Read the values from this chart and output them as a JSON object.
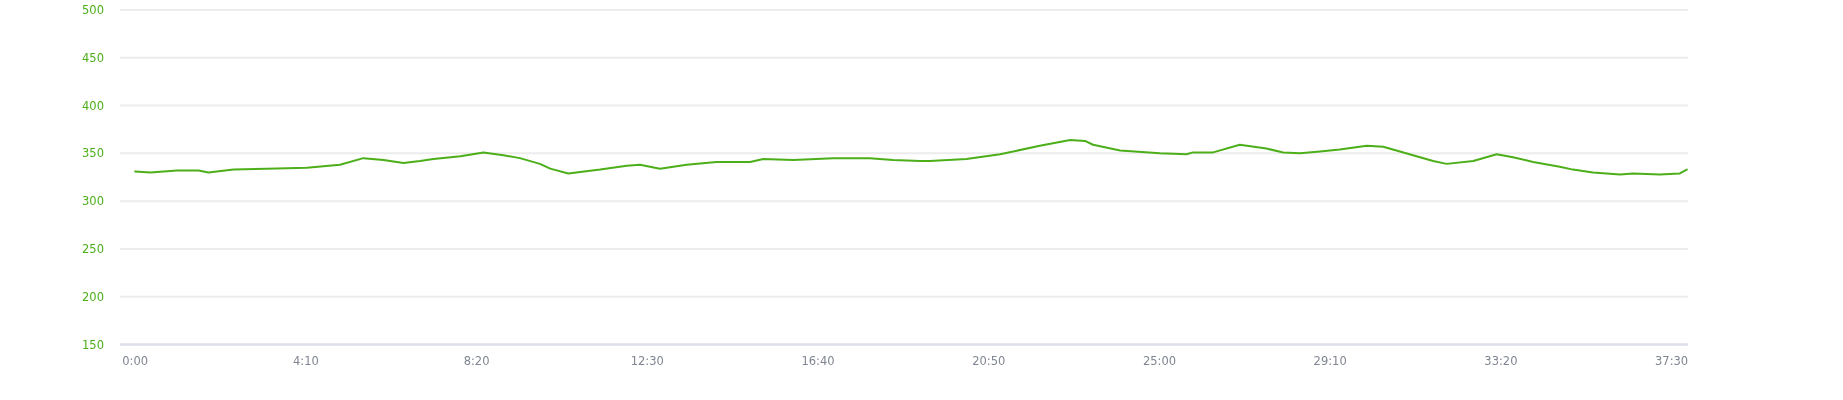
{
  "chart_data": {
    "type": "line",
    "color": "#4caf1a",
    "grid": "y",
    "marker": "none",
    "line_style": "solid",
    "x": [
      0,
      0.37,
      1.02,
      1.55,
      1.79,
      2.4,
      3.21,
      4.19,
      5.0,
      5.57,
      6.06,
      6.55,
      6.95,
      7.28,
      7.94,
      8.5,
      8.99,
      9.39,
      9.88,
      10.13,
      10.57,
      11.35,
      12.0,
      12.32,
      12.81,
      13.46,
      14.19,
      15.01,
      15.33,
      16.06,
      17.04,
      17.93,
      18.5,
      19.16,
      19.4,
      20.29,
      21.11,
      22.08,
      22.82,
      23.18,
      23.38,
      24.04,
      25.01,
      25.66,
      25.82,
      26.31,
      26.96,
      27.61,
      28.02,
      28.43,
      28.92,
      29.4,
      30.06,
      30.46,
      30.87,
      31.68,
      32.01,
      32.66,
      33.23,
      33.63,
      34.12,
      34.77,
      35.09,
      35.58,
      36.24,
      36.56,
      37.21,
      37.7,
      37.87
    ],
    "values": [
      331,
      330,
      332,
      332,
      330,
      333,
      334,
      335,
      338,
      345,
      343,
      340,
      342,
      344,
      347,
      351,
      348,
      345,
      339,
      334,
      329,
      333,
      337,
      338,
      334,
      338,
      341,
      341,
      344,
      343,
      345,
      345,
      343,
      342,
      342,
      344,
      349,
      358,
      364,
      363,
      359,
      353,
      350,
      349,
      351,
      351,
      359,
      355,
      351,
      350,
      352,
      354,
      358,
      357,
      352,
      342,
      339,
      342,
      349,
      346,
      341,
      336,
      333,
      330,
      328,
      329,
      328,
      329,
      333
    ],
    "xlim": [
      -0.37,
      37.9
    ],
    "xticks": [
      {
        "value": 0,
        "label": "0:00"
      },
      {
        "value": 4.1667,
        "label": "4:10"
      },
      {
        "value": 8.3333,
        "label": "8:20"
      },
      {
        "value": 12.5,
        "label": "12:30"
      },
      {
        "value": 16.6667,
        "label": "16:40"
      },
      {
        "value": 20.8333,
        "label": "20:50"
      },
      {
        "value": 25,
        "label": "25:00"
      },
      {
        "value": 29.1667,
        "label": "29:10"
      },
      {
        "value": 33.3333,
        "label": "33:20"
      },
      {
        "value": 37.5,
        "label": "37:30"
      }
    ],
    "ylim": [
      150,
      500
    ],
    "yticks": [
      150,
      200,
      250,
      300,
      350,
      400,
      450,
      500
    ]
  }
}
